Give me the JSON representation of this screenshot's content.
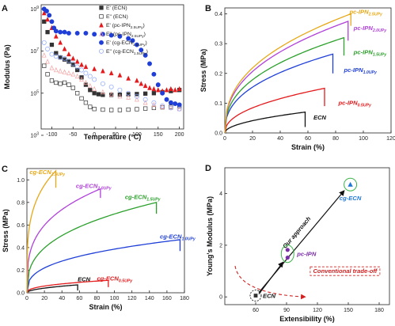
{
  "panels": {
    "A": {
      "label": "A"
    },
    "B": {
      "label": "B"
    },
    "C": {
      "label": "C"
    },
    "D": {
      "label": "D"
    }
  },
  "chart_data": [
    {
      "panel": "A",
      "type": "scatter",
      "xlabel": "Temperature (°C)",
      "ylabel": "Modulus (Pa)",
      "xlim": [
        -125,
        210
      ],
      "ylim_log10": [
        3.3,
        9.2
      ],
      "yscale": "log",
      "xticks": [
        -100,
        -50,
        0,
        50,
        100,
        150,
        200
      ],
      "yticks": [
        "10^3",
        "10^5",
        "10^7",
        "10^9"
      ],
      "legend_position": "top-right",
      "series": [
        {
          "name": "E' (ECN)",
          "base": "E' (ECN)",
          "sub": "",
          "color": "#333333",
          "marker": "square-filled",
          "points": [
            [
              -118,
              8.4
            ],
            [
              -110,
              7.9
            ],
            [
              -100,
              7.3
            ],
            [
              -90,
              6.9
            ],
            [
              -80,
              6.7
            ],
            [
              -70,
              6.6
            ],
            [
              -60,
              6.5
            ],
            [
              -50,
              6.35
            ],
            [
              -40,
              6.1
            ],
            [
              -30,
              5.75
            ],
            [
              -20,
              5.4
            ],
            [
              -10,
              5.15
            ],
            [
              0,
              5.0
            ],
            [
              10,
              4.95
            ],
            [
              20,
              4.92
            ],
            [
              40,
              4.92
            ],
            [
              60,
              4.93
            ],
            [
              80,
              4.95
            ],
            [
              100,
              4.96
            ],
            [
              120,
              4.98
            ],
            [
              140,
              5.0
            ],
            [
              160,
              5.05
            ],
            [
              180,
              5.1
            ],
            [
              200,
              5.15
            ]
          ]
        },
        {
          "name": "E'' (ECN)",
          "base": "E\" (ECN)",
          "sub": "",
          "color": "#333333",
          "marker": "square-open",
          "points": [
            [
              -118,
              6.3
            ],
            [
              -110,
              5.9
            ],
            [
              -100,
              5.6
            ],
            [
              -90,
              5.5
            ],
            [
              -80,
              5.45
            ],
            [
              -70,
              5.5
            ],
            [
              -60,
              5.4
            ],
            [
              -50,
              5.25
            ],
            [
              -40,
              5.0
            ],
            [
              -30,
              4.75
            ],
            [
              -20,
              4.55
            ],
            [
              -10,
              4.35
            ],
            [
              0,
              4.25
            ],
            [
              20,
              4.22
            ],
            [
              40,
              4.2
            ],
            [
              60,
              4.2
            ],
            [
              80,
              4.22
            ],
            [
              100,
              4.24
            ],
            [
              120,
              4.27
            ],
            [
              140,
              4.3
            ],
            [
              160,
              4.33
            ],
            [
              180,
              4.35
            ],
            [
              200,
              4.38
            ]
          ]
        },
        {
          "name": "E' (pc-IPN2.5UPy)",
          "base": "E' (pc-IPN",
          "sub": "2.5UPy",
          "color": "#e41a1c",
          "marker": "triangle-filled",
          "points": [
            [
              -118,
              8.8
            ],
            [
              -110,
              8.5
            ],
            [
              -100,
              8.1
            ],
            [
              -90,
              7.7
            ],
            [
              -80,
              7.4
            ],
            [
              -70,
              7.1
            ],
            [
              -60,
              6.85
            ],
            [
              -50,
              6.65
            ],
            [
              -40,
              6.5
            ],
            [
              -30,
              6.35
            ],
            [
              -20,
              6.25
            ],
            [
              0,
              6.15
            ],
            [
              20,
              6.05
            ],
            [
              40,
              5.95
            ],
            [
              60,
              5.85
            ],
            [
              80,
              5.7
            ],
            [
              100,
              5.6
            ],
            [
              110,
              5.45
            ],
            [
              120,
              5.35
            ],
            [
              130,
              5.25
            ],
            [
              140,
              5.2
            ],
            [
              150,
              5.15
            ],
            [
              160,
              5.1
            ],
            [
              170,
              5.15
            ],
            [
              180,
              5.2
            ],
            [
              190,
              5.15
            ],
            [
              200,
              5.2
            ]
          ]
        },
        {
          "name": "E'' (pc-IPN2.5UPy)",
          "base": "E\" (pc-IPN",
          "sub": "2.5UPy",
          "color": "#f4a0a0",
          "marker": "triangle-open",
          "points": [
            [
              -118,
              6.8
            ],
            [
              -110,
              6.5
            ],
            [
              -100,
              6.2
            ],
            [
              -90,
              6.1
            ],
            [
              -80,
              6.05
            ],
            [
              -70,
              6.0
            ],
            [
              -60,
              5.95
            ],
            [
              -50,
              5.9
            ],
            [
              -40,
              5.8
            ],
            [
              -30,
              5.65
            ],
            [
              -20,
              5.5
            ],
            [
              -10,
              5.35
            ],
            [
              0,
              5.2
            ],
            [
              20,
              5.05
            ],
            [
              40,
              4.95
            ],
            [
              60,
              4.85
            ],
            [
              80,
              4.8
            ],
            [
              100,
              4.7
            ],
            [
              120,
              4.55
            ],
            [
              140,
              4.45
            ],
            [
              160,
              4.35
            ],
            [
              180,
              4.3
            ],
            [
              200,
              4.25
            ]
          ]
        },
        {
          "name": "E' (cg-ECN1.5UPy)",
          "base": "E' (cg-ECN",
          "sub": "1.5UPy",
          "color": "#1f3fd8",
          "marker": "circle-filled",
          "points": [
            [
              -118,
              9.0
            ],
            [
              -112,
              8.9
            ],
            [
              -106,
              8.7
            ],
            [
              -100,
              8.4
            ],
            [
              -95,
              8.1
            ],
            [
              -90,
              7.95
            ],
            [
              -80,
              7.9
            ],
            [
              -70,
              7.9
            ],
            [
              -60,
              7.85
            ],
            [
              -40,
              7.85
            ],
            [
              -20,
              7.85
            ],
            [
              0,
              7.8
            ],
            [
              20,
              7.8
            ],
            [
              40,
              7.75
            ],
            [
              60,
              7.7
            ],
            [
              80,
              7.6
            ],
            [
              90,
              7.5
            ],
            [
              100,
              7.3
            ],
            [
              110,
              7.05
            ],
            [
              120,
              6.8
            ],
            [
              130,
              6.4
            ],
            [
              140,
              5.9
            ],
            [
              150,
              5.4
            ],
            [
              160,
              5.0
            ],
            [
              170,
              4.7
            ],
            [
              180,
              4.55
            ],
            [
              190,
              4.5
            ],
            [
              200,
              4.45
            ]
          ]
        },
        {
          "name": "E'' (cg-ECN1.5UPy)",
          "base": "E\" (cg-ECN",
          "sub": "1.5UPy",
          "color": "#8aa6ff",
          "marker": "circle-open",
          "points": [
            [
              -118,
              7.4
            ],
            [
              -110,
              7.1
            ],
            [
              -100,
              6.85
            ],
            [
              -90,
              6.75
            ],
            [
              -80,
              6.7
            ],
            [
              -70,
              6.65
            ],
            [
              -60,
              6.55
            ],
            [
              -50,
              6.4
            ],
            [
              -40,
              6.25
            ],
            [
              -30,
              6.1
            ],
            [
              -20,
              5.95
            ],
            [
              -10,
              5.8
            ],
            [
              0,
              5.65
            ],
            [
              20,
              5.45
            ],
            [
              40,
              5.3
            ],
            [
              60,
              5.15
            ],
            [
              80,
              5.0
            ],
            [
              100,
              4.85
            ],
            [
              120,
              4.7
            ],
            [
              140,
              4.55
            ],
            [
              160,
              4.4
            ],
            [
              180,
              4.3
            ],
            [
              200,
              4.25
            ]
          ]
        }
      ]
    },
    {
      "panel": "B",
      "type": "line",
      "xlabel": "Strain (%)",
      "ylabel": "Stress (MPa)",
      "xlim": [
        0,
        120
      ],
      "ylim": [
        0,
        0.42
      ],
      "xticks": [
        0,
        20,
        40,
        60,
        80,
        100,
        120
      ],
      "yticks": [
        0.0,
        0.1,
        0.2,
        0.3,
        0.4
      ],
      "series": [
        {
          "name": "ECN",
          "base": "ECN",
          "sub": "",
          "italic": false,
          "color": "#111111",
          "end_strain": 58,
          "end_stress": 0.07,
          "break_stress": 0.02,
          "shape": 0.5,
          "label_at": [
            64,
            0.045
          ]
        },
        {
          "name": "pc-IPN0.5UPy",
          "base": "pc-IPN",
          "sub": "0.5UPy",
          "italic": true,
          "color": "#e41a1c",
          "end_strain": 72,
          "end_stress": 0.15,
          "break_stress": 0.09,
          "shape": 0.45,
          "label_at": [
            82,
            0.095
          ]
        },
        {
          "name": "pc-IPN1.0UPy",
          "base": "pc-IPN",
          "sub": "1.0UPy",
          "italic": true,
          "color": "#1f3fd8",
          "end_strain": 78,
          "end_stress": 0.265,
          "break_stress": 0.2,
          "shape": 0.4,
          "label_at": [
            86,
            0.205
          ]
        },
        {
          "name": "pc-IPN1.5UPy",
          "base": "pc-IPN",
          "sub": "1.5UPy",
          "italic": true,
          "color": "#2ca02c",
          "end_strain": 86,
          "end_stress": 0.32,
          "break_stress": 0.26,
          "shape": 0.4,
          "label_at": [
            93,
            0.265
          ]
        },
        {
          "name": "pc-IPN2.0UPy",
          "base": "pc-IPN",
          "sub": "2.0UPy",
          "italic": true,
          "color": "#b041d9",
          "end_strain": 89,
          "end_stress": 0.375,
          "break_stress": 0.31,
          "shape": 0.4,
          "label_at": [
            93,
            0.345
          ]
        },
        {
          "name": "pc-IPN2.5UPy",
          "base": "pc-IPN",
          "sub": "2.5UPy",
          "italic": true,
          "color": "#e6a817",
          "end_strain": 91,
          "end_stress": 0.4,
          "break_stress": 0.36,
          "shape": 0.4,
          "label_at": [
            90,
            0.4
          ]
        }
      ]
    },
    {
      "panel": "C",
      "type": "line",
      "xlabel": "Strain (%)",
      "ylabel": "Stress (MPa)",
      "xlim": [
        0,
        180
      ],
      "ylim": [
        0,
        1.1
      ],
      "xticks": [
        0,
        20,
        40,
        60,
        80,
        100,
        120,
        140,
        160,
        180
      ],
      "yticks": [
        0.0,
        0.2,
        0.4,
        0.6,
        0.8,
        1.0
      ],
      "series": [
        {
          "name": "ECN",
          "base": "ECN",
          "sub": "",
          "italic": false,
          "color": "#111111",
          "end_strain": 58,
          "end_stress": 0.07,
          "break_stress": 0.02,
          "shape": 0.5,
          "label_at": [
            58,
            0.1
          ]
        },
        {
          "name": "cg-ECN0.5UPy",
          "base": "cg-ECN",
          "sub": "0.5UPy",
          "italic": true,
          "color": "#e41a1c",
          "end_strain": 93,
          "end_stress": 0.11,
          "break_stress": 0.05,
          "shape": 0.4,
          "label_at": [
            80,
            0.11
          ]
        },
        {
          "name": "cg-ECN1.0UPy",
          "base": "cg-ECN",
          "sub": "1.0UPy",
          "italic": true,
          "color": "#1f3fd8",
          "end_strain": 175,
          "end_stress": 0.47,
          "break_stress": 0.37,
          "shape": 0.35,
          "label_at": [
            152,
            0.48
          ]
        },
        {
          "name": "cg-ECN1.5UPy",
          "base": "cg-ECN",
          "sub": "1.5UPy",
          "italic": true,
          "color": "#2ca02c",
          "end_strain": 148,
          "end_stress": 0.8,
          "break_stress": 0.7,
          "shape": 0.35,
          "label_at": [
            112,
            0.83
          ]
        },
        {
          "name": "cg-ECN2.0UPy",
          "base": "cg-ECN",
          "sub": "2.0UPy",
          "italic": true,
          "color": "#b041d9",
          "end_strain": 84,
          "end_stress": 0.92,
          "break_stress": 0.84,
          "shape": 0.3,
          "label_at": [
            56,
            0.93
          ]
        },
        {
          "name": "cg-ECN2.5UPy",
          "base": "cg-ECN",
          "sub": "2.5UPy",
          "italic": true,
          "color": "#e6a817",
          "end_strain": 33,
          "end_stress": 1.08,
          "break_stress": 0.93,
          "shape": 0.25,
          "label_at": [
            3,
            1.05
          ]
        }
      ]
    },
    {
      "panel": "D",
      "type": "scatter",
      "xlabel": "Extensibility (%)",
      "ylabel": "Young's Modulus (MPa)",
      "xlim": [
        30,
        190
      ],
      "ylim": [
        -0.3,
        5.0
      ],
      "xticks": [
        60,
        90,
        120,
        150,
        180
      ],
      "yticks": [
        0,
        2,
        4
      ],
      "points": [
        {
          "name": "ECN",
          "x": 60,
          "y": 0.05,
          "color": "#333333",
          "marker": "square"
        },
        {
          "name": "pc-IPN",
          "x": 91,
          "y": 1.52,
          "color": "#7a2fa8",
          "marker": "circle"
        },
        {
          "name": "pc-IPN",
          "x": 91,
          "y": 1.82,
          "color": "#7a2fa8",
          "marker": "circle"
        },
        {
          "name": "cg-ECN",
          "x": 152,
          "y": 4.35,
          "color": "#1f78d8",
          "marker": "triangle"
        }
      ],
      "annotations": {
        "ecn": "ECN",
        "pc_ipn": "pc-IPN",
        "cg_ecn": "cg-ECN",
        "approach": "Our approach",
        "tradeoff": "Conventional trade-off"
      }
    }
  ]
}
